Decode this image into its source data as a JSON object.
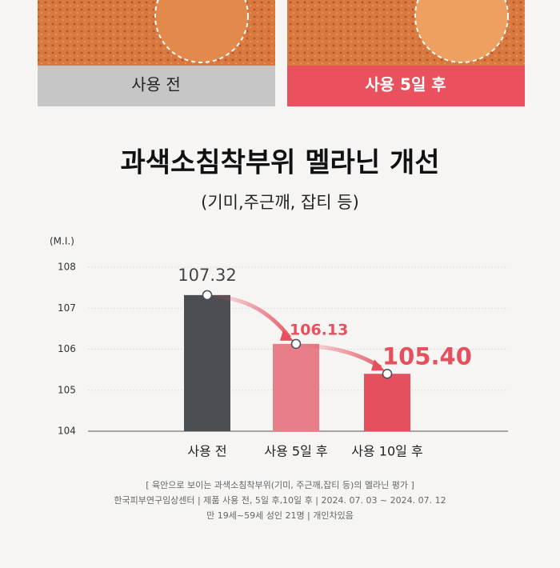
{
  "comparison": {
    "before_label": "사용 전",
    "after_label": "사용 5일 후"
  },
  "chart_data": {
    "type": "bar",
    "title": "과색소침착부위 멜라닌 개선",
    "subtitle": "(기미,주근깨, 잡티 등)",
    "y_label": "(M.I.)",
    "categories": [
      "사용 전",
      "사용 5일 후",
      "사용 10일 후"
    ],
    "values": [
      107.32,
      106.13,
      105.4
    ],
    "value_labels": [
      "107.32",
      "106.13",
      "105.40"
    ],
    "colors": [
      "#4b4e53",
      "#e87e88",
      "#e5505e"
    ],
    "ylim": [
      104,
      108
    ],
    "yticks": [
      104,
      105,
      106,
      107,
      108
    ],
    "grid": true,
    "footnotes": [
      "[ 육안으로 보이는 과색소침착부위(기미, 주근깨,잡티 등)의 멜라닌 평가 ]",
      "한국피부연구임상센터 | 제품 사용 전, 5일 후,10일 후 | 2024. 07. 03 ~ 2024. 07. 12",
      "만 19세~59세 성인 21명 | 개인차있음"
    ]
  }
}
